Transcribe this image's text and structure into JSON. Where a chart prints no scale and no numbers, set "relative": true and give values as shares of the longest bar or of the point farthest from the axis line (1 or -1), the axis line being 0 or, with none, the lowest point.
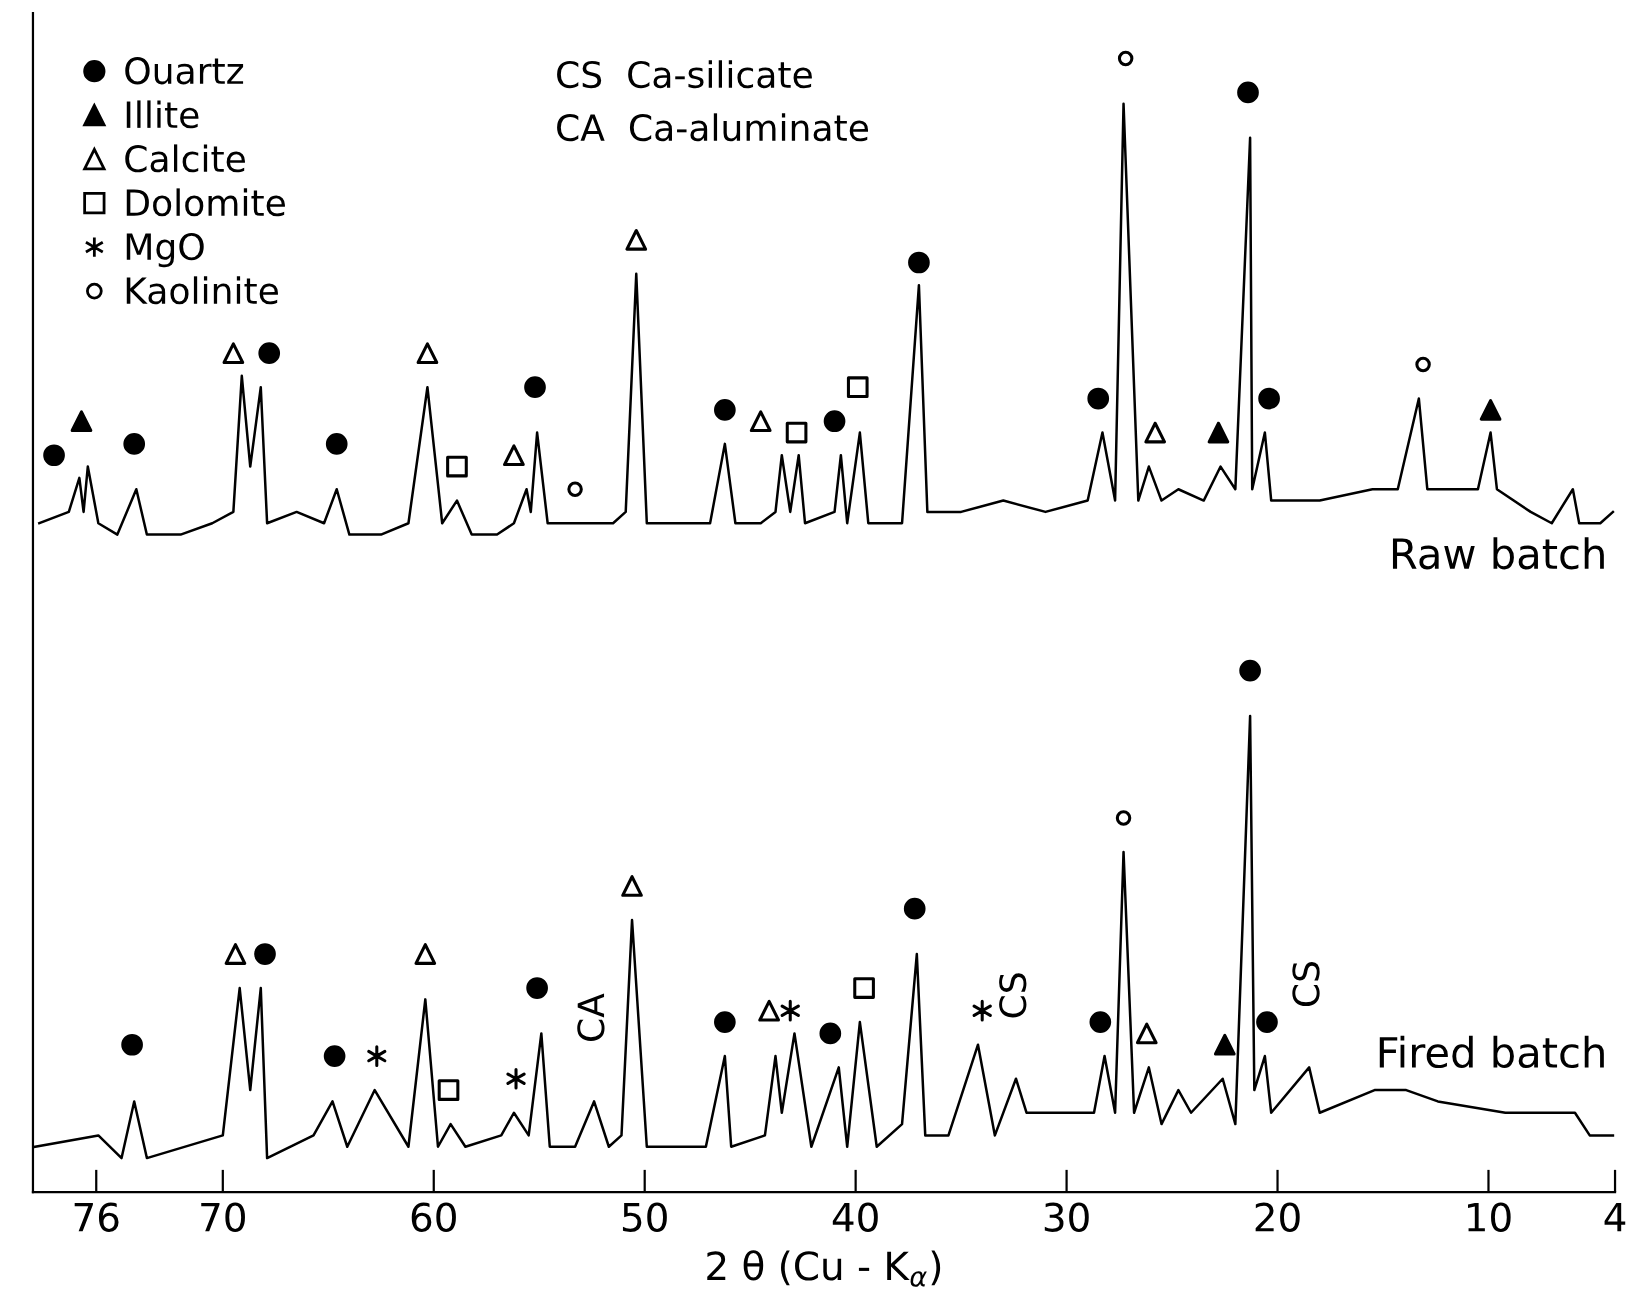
{
  "chart_data": {
    "type": "line",
    "relative": true,
    "xlabel": "2 θ (Cu - K$_{α}$)",
    "xlim": [
      79,
      4
    ],
    "xticks": [
      76,
      70,
      60,
      50,
      40,
      30,
      20,
      10,
      4
    ],
    "grid": false,
    "legend": "top left",
    "line_style": "solid",
    "annotations": [
      "CS  Ca-silicate",
      "CA  Ca-aluminate",
      {
        "text": "CA",
        "x": 52.4,
        "y": 0.08
      },
      {
        "text": "CS",
        "x": 32.4,
        "y": 0.1
      },
      {
        "text": "CS",
        "x": 18.5,
        "y": 0.11
      }
    ],
    "series": [
      {
        "name": "Raw batch",
        "color": "#000000",
        "marker": "none",
        "x": [
          78.7,
          77.3,
          76.8,
          76.6,
          76.4,
          75.9,
          75.0,
          74.1,
          73.6,
          72.0,
          70.5,
          69.5,
          69.1,
          68.7,
          68.2,
          67.9,
          66.5,
          65.2,
          64.6,
          64.0,
          62.5,
          61.2,
          60.3,
          59.6,
          58.9,
          58.2,
          57.0,
          56.2,
          55.6,
          55.4,
          55.1,
          54.6,
          53.0,
          51.5,
          50.9,
          50.4,
          49.9,
          48.0,
          46.9,
          46.2,
          45.7,
          44.5,
          43.8,
          43.5,
          43.1,
          42.7,
          42.4,
          41.0,
          40.7,
          40.4,
          39.8,
          39.4,
          37.8,
          37.0,
          36.6,
          35.0,
          33.0,
          31.0,
          29.0,
          28.3,
          27.7,
          27.3,
          26.6,
          26.1,
          25.5,
          24.7,
          23.5,
          22.7,
          22.0,
          21.3,
          21.2,
          20.6,
          20.3,
          18.0,
          15.5,
          14.3,
          13.3,
          12.9,
          11.0,
          10.5,
          9.9,
          9.6,
          8.0,
          7.0,
          6.0,
          5.7,
          4.7,
          4.1
        ],
        "values": [
          0.59,
          0.6,
          0.63,
          0.6,
          0.64,
          0.59,
          0.58,
          0.62,
          0.58,
          0.58,
          0.59,
          0.6,
          0.72,
          0.64,
          0.71,
          0.59,
          0.6,
          0.59,
          0.62,
          0.58,
          0.58,
          0.59,
          0.71,
          0.59,
          0.61,
          0.58,
          0.58,
          0.59,
          0.62,
          0.6,
          0.67,
          0.59,
          0.59,
          0.59,
          0.6,
          0.81,
          0.59,
          0.59,
          0.59,
          0.66,
          0.59,
          0.59,
          0.6,
          0.65,
          0.6,
          0.65,
          0.59,
          0.6,
          0.65,
          0.59,
          0.67,
          0.59,
          0.59,
          0.8,
          0.6,
          0.6,
          0.61,
          0.6,
          0.61,
          0.67,
          0.61,
          0.96,
          0.61,
          0.64,
          0.61,
          0.62,
          0.61,
          0.64,
          0.62,
          0.93,
          0.62,
          0.67,
          0.61,
          0.61,
          0.62,
          0.62,
          0.7,
          0.62,
          0.62,
          0.62,
          0.67,
          0.62,
          0.6,
          0.59,
          0.62,
          0.59,
          0.59,
          0.6
        ]
      },
      {
        "name": "Fired batch",
        "color": "#000000",
        "marker": "none",
        "x": [
          78.9,
          75.9,
          74.8,
          74.2,
          73.6,
          70.0,
          69.2,
          68.7,
          68.2,
          67.9,
          65.7,
          64.8,
          64.1,
          62.8,
          61.2,
          60.4,
          59.8,
          59.2,
          58.5,
          56.8,
          56.2,
          55.5,
          54.9,
          54.5,
          53.3,
          52.4,
          51.7,
          51.1,
          50.6,
          49.9,
          47.1,
          46.2,
          45.9,
          44.3,
          43.8,
          43.5,
          42.9,
          42.1,
          40.8,
          40.4,
          39.8,
          39.0,
          37.8,
          37.1,
          36.7,
          35.6,
          34.2,
          33.4,
          32.4,
          31.9,
          28.7,
          28.2,
          27.7,
          27.3,
          26.8,
          26.1,
          25.5,
          24.7,
          24.1,
          22.6,
          22.0,
          21.3,
          21.1,
          20.6,
          20.3,
          18.5,
          18.0,
          15.4,
          13.9,
          12.4,
          9.2,
          5.9,
          5.2,
          4.1
        ],
        "values": [
          0.04,
          0.05,
          0.03,
          0.08,
          0.03,
          0.05,
          0.18,
          0.09,
          0.18,
          0.03,
          0.05,
          0.08,
          0.04,
          0.09,
          0.04,
          0.17,
          0.04,
          0.06,
          0.04,
          0.05,
          0.07,
          0.05,
          0.14,
          0.04,
          0.04,
          0.08,
          0.04,
          0.05,
          0.24,
          0.04,
          0.04,
          0.12,
          0.04,
          0.05,
          0.12,
          0.07,
          0.14,
          0.04,
          0.11,
          0.04,
          0.15,
          0.04,
          0.06,
          0.21,
          0.05,
          0.05,
          0.13,
          0.05,
          0.1,
          0.07,
          0.07,
          0.12,
          0.07,
          0.3,
          0.07,
          0.11,
          0.06,
          0.09,
          0.07,
          0.1,
          0.06,
          0.42,
          0.09,
          0.12,
          0.07,
          0.11,
          0.07,
          0.09,
          0.09,
          0.08,
          0.07,
          0.07,
          0.05,
          0.05
        ]
      },
      {
        "name": "Ouartz",
        "type": "scatter",
        "color": "#000000",
        "marker": "circle",
        "x": [
          78.0,
          74.2,
          67.8,
          64.6,
          55.2,
          46.2,
          41.0,
          37.0,
          28.5,
          21.4,
          20.4,
          74.3,
          68.0,
          64.7,
          55.1,
          46.2,
          41.2,
          37.2,
          28.4,
          21.3,
          20.5
        ],
        "values": [
          0.65,
          0.66,
          0.74,
          0.66,
          0.71,
          0.69,
          0.68,
          0.82,
          0.7,
          0.97,
          0.7,
          0.13,
          0.21,
          0.12,
          0.18,
          0.15,
          0.14,
          0.25,
          0.15,
          0.46,
          0.15
        ]
      },
      {
        "name": "Illite",
        "type": "scatter",
        "color": "#000000",
        "marker": "triangle",
        "x": [
          76.7,
          22.8,
          9.9,
          22.5
        ],
        "values": [
          0.68,
          0.67,
          0.69,
          0.13
        ]
      },
      {
        "name": "Calcite",
        "type": "scatter",
        "color": "#ffffff",
        "marker": "triangle",
        "x": [
          69.5,
          60.3,
          56.2,
          50.4,
          44.5,
          25.8,
          69.4,
          60.4,
          50.6,
          44.1,
          26.2
        ],
        "values": [
          0.74,
          0.74,
          0.65,
          0.84,
          0.68,
          0.67,
          0.21,
          0.21,
          0.27,
          0.16,
          0.14
        ]
      },
      {
        "name": "Dolomite",
        "type": "scatter",
        "color": "#ffffff",
        "marker": "square",
        "x": [
          58.9,
          42.8,
          39.9,
          59.3,
          39.6
        ],
        "values": [
          0.64,
          0.67,
          0.71,
          0.09,
          0.18
        ]
      },
      {
        "name": "MgO",
        "type": "scatter",
        "color": "#000000",
        "marker": "cross",
        "x": [
          62.7,
          56.1,
          43.1,
          34.0
        ],
        "values": [
          0.12,
          0.1,
          0.16,
          0.16
        ]
      },
      {
        "name": "Kaolinite",
        "type": "scatter",
        "color": "#ffffff",
        "marker": "circle",
        "x": [
          53.3,
          27.2,
          13.1,
          27.3
        ],
        "values": [
          0.62,
          1.0,
          0.73,
          0.33
        ]
      }
    ]
  }
}
